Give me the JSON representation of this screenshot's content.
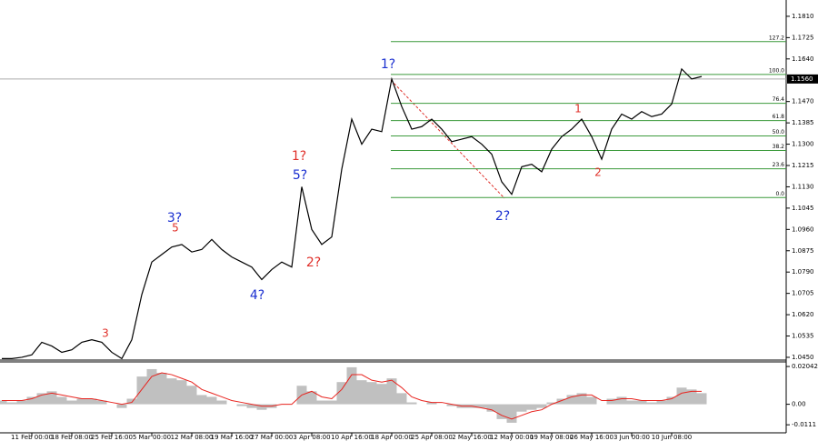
{
  "chart_data": [
    {
      "type": "line",
      "color": "#000000",
      "categories": [
        null,
        null,
        null,
        "11 Feb 00:00",
        null,
        null,
        null,
        "18 Feb 08:00",
        null,
        null,
        null,
        "25 Feb 16:00",
        null,
        null,
        null,
        "5 Mar 00:00",
        null,
        null,
        null,
        "12 Mar 08:00",
        null,
        null,
        null,
        "19 Mar 16:00",
        null,
        null,
        null,
        "27 Mar 00:00",
        null,
        null,
        null,
        "3 Apr 08:00",
        null,
        null,
        null,
        "10 Apr 16:00",
        null,
        null,
        null,
        "18 Apr 00:00",
        null,
        null,
        null,
        "25 Apr 08:00",
        null,
        null,
        null,
        "2 May 16:00",
        null,
        null,
        null,
        "12 May 00:00",
        null,
        null,
        null,
        "19 May 08:00",
        null,
        null,
        null,
        "26 May 16:00",
        null,
        null,
        null,
        "3 Jun 00:00",
        null,
        null,
        null,
        "10 Jun 08:00",
        null,
        null,
        null
      ],
      "values": [
        1.0445,
        1.0445,
        1.045,
        1.046,
        1.051,
        1.0495,
        1.047,
        1.048,
        1.051,
        1.052,
        1.051,
        1.047,
        1.0445,
        1.052,
        1.07,
        1.083,
        1.086,
        1.089,
        1.09,
        1.087,
        1.088,
        1.092,
        1.088,
        1.085,
        1.083,
        1.081,
        1.076,
        1.08,
        1.083,
        1.081,
        1.113,
        1.096,
        1.09,
        1.093,
        1.12,
        1.14,
        1.13,
        1.136,
        1.135,
        1.156,
        1.145,
        1.136,
        1.137,
        1.14,
        1.136,
        1.131,
        1.132,
        1.133,
        1.13,
        1.126,
        1.115,
        1.11,
        1.121,
        1.122,
        1.119,
        1.128,
        1.133,
        1.136,
        1.14,
        1.133,
        1.124,
        1.136,
        1.142,
        1.14,
        1.143,
        1.141,
        1.142,
        1.146,
        1.16,
        1.156,
        1.157
      ],
      "ylim": [
        1.0439,
        1.1875
      ],
      "yticks": [
        {
          "value": 1.181,
          "label": "1.1810"
        },
        1.1725,
        {
          "value": 1.164,
          "label": "1.1640"
        },
        {
          "value": 1.147,
          "label": "1.1470"
        },
        1.1385,
        {
          "value": 1.13,
          "label": "1.1300"
        },
        1.1215,
        {
          "value": 1.113,
          "label": "1.1130"
        },
        1.1045,
        {
          "value": 1.096,
          "label": "1.0960"
        },
        1.0875,
        {
          "value": 1.079,
          "label": "1.0790"
        },
        1.0705,
        {
          "value": 1.062,
          "label": "1.0620"
        },
        1.0535,
        {
          "value": 1.045,
          "label": "1.0450"
        }
      ],
      "current_price": {
        "value": 1.156,
        "label": "1.1560"
      },
      "fib_color": "#3c9a3c",
      "fib_levels": [
        {
          "label": "127.2",
          "price": 1.1709
        },
        {
          "label": "100.0",
          "price": 1.1578
        },
        {
          "label": "76.4",
          "price": 1.1463
        },
        {
          "label": "61.8",
          "price": 1.1394
        },
        {
          "label": "50.0",
          "price": 1.1333
        },
        {
          "label": "38.2",
          "price": 1.1275
        },
        {
          "label": "23.6",
          "price": 1.1202
        },
        {
          "label": "0.0",
          "price": 1.1087
        }
      ],
      "annotations": [
        {
          "text": "3",
          "color": "#e0302a"
        },
        {
          "text": "3?",
          "color": "#1a2fd0"
        },
        {
          "text": "5",
          "color": "#e0302a"
        },
        {
          "text": "4?",
          "color": "#1a2fd0"
        },
        {
          "text": "1?",
          "color": "#e0302a"
        },
        {
          "text": "5?",
          "color": "#1a2fd0"
        },
        {
          "text": "2?",
          "color": "#e0302a"
        },
        {
          "text": "1?",
          "color": "#1a2fd0"
        },
        {
          "text": "2?",
          "color": "#1a2fd0"
        },
        {
          "text": "1",
          "color": "#e0302a"
        },
        {
          "text": "2",
          "color": "#e0302a"
        }
      ]
    },
    {
      "type": "bar",
      "color": "#c0c0c0",
      "values": [
        0.002,
        0.001,
        0.002,
        0.004,
        0.006,
        0.007,
        0.004,
        0.002,
        0.003,
        0.003,
        0.002,
        0,
        -0.002,
        0.003,
        0.015,
        0.019,
        0.017,
        0.014,
        0.013,
        0.01,
        0.005,
        0.004,
        0.002,
        0,
        -0.001,
        -0.002,
        -0.003,
        -0.002,
        0,
        0,
        0.01,
        0.007,
        0.002,
        0.002,
        0.012,
        0.02,
        0.013,
        0.012,
        0.011,
        0.014,
        0.006,
        0.001,
        0,
        0.001,
        0,
        -0.001,
        -0.002,
        -0.002,
        -0.002,
        -0.004,
        -0.008,
        -0.01,
        -0.004,
        -0.003,
        -0.002,
        0.001,
        0.003,
        0.005,
        0.006,
        0.004,
        0,
        0.003,
        0.004,
        0.002,
        0.002,
        0.001,
        0.002,
        0.004,
        0.009,
        0.008,
        0.006
      ],
      "signal": {
        "color": "#e8231e",
        "values": [
          0.002,
          0.002,
          0.002,
          0.003,
          0.005,
          0.006,
          0.005,
          0.004,
          0.003,
          0.003,
          0.002,
          0.001,
          0,
          0.001,
          0.008,
          0.015,
          0.017,
          0.016,
          0.014,
          0.012,
          0.008,
          0.006,
          0.004,
          0.002,
          0.001,
          0,
          -0.001,
          -0.001,
          0,
          0,
          0.005,
          0.007,
          0.004,
          0.003,
          0.008,
          0.016,
          0.016,
          0.013,
          0.012,
          0.013,
          0.009,
          0.004,
          0.002,
          0.001,
          0.001,
          0,
          -0.001,
          -0.001,
          -0.002,
          -0.003,
          -0.006,
          -0.008,
          -0.006,
          -0.004,
          -0.003,
          0,
          0.002,
          0.004,
          0.005,
          0.005,
          0.002,
          0.002,
          0.003,
          0.003,
          0.002,
          0.002,
          0.002,
          0.003,
          0.006,
          0.007,
          0.007
        ]
      },
      "ylim": [
        -0.01544,
        0.02291
      ],
      "yticks": [
        0.02042,
        {
          "value": 0,
          "label": "0.00"
        },
        -0.0111
      ]
    }
  ]
}
